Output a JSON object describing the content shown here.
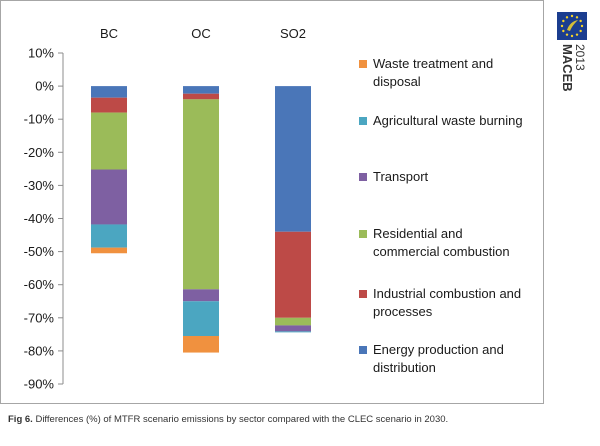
{
  "chart_data": {
    "type": "bar",
    "stacked": true,
    "categories": [
      "BC",
      "OC",
      "SO2"
    ],
    "series": [
      {
        "name": "Energy production and distribution",
        "color": "#4a76b8",
        "values": [
          -3.5,
          -2.3,
          -44.0
        ]
      },
      {
        "name": "Industrial combustion and processes",
        "color": "#bd4a47",
        "values": [
          -4.5,
          -1.7,
          -26.0
        ]
      },
      {
        "name": "Residential and commercial combustion",
        "color": "#9bbb59",
        "values": [
          -17.2,
          -57.4,
          -2.3
        ]
      },
      {
        "name": "Transport",
        "color": "#7e60a2",
        "values": [
          -16.6,
          -3.6,
          -1.8
        ]
      },
      {
        "name": "Agricultural waste burning",
        "color": "#4ba6c1",
        "values": [
          -7.0,
          -10.5,
          -0.3
        ]
      },
      {
        "name": "Waste treatment and disposal",
        "color": "#f0913f",
        "values": [
          -1.7,
          -5.0,
          0.0
        ]
      }
    ],
    "legend_order": [
      5,
      4,
      3,
      2,
      1,
      0
    ],
    "legend_placement": "right",
    "ylim": [
      -90,
      10
    ],
    "yticks": [
      10,
      0,
      -10,
      -20,
      -30,
      -40,
      -50,
      -60,
      -70,
      -80,
      -90
    ],
    "ytick_format": "percent",
    "grid": false,
    "xlabel": "",
    "ylabel": ""
  },
  "legend": {
    "items": [
      {
        "lines": [
          "Waste treatment and",
          "disposal"
        ]
      },
      {
        "lines": [
          "Agricultural waste burning"
        ]
      },
      {
        "lines": [
          "Transport"
        ]
      },
      {
        "lines": [
          "Residential and",
          "commercial combustion"
        ]
      },
      {
        "lines": [
          "Industrial combustion and",
          "processes"
        ]
      },
      {
        "lines": [
          "Energy production and",
          "distribution"
        ]
      }
    ]
  },
  "caption": {
    "label": "Fig 6.",
    "text": " Differences (%) of MTFR scenario emissions by sector compared with the CLEC scenario in 2030."
  },
  "badge": {
    "name": "MACEB",
    "year": "2013",
    "logo_icon": "eu-stars-logo-icon",
    "logo_color": "#1b3d8f"
  }
}
